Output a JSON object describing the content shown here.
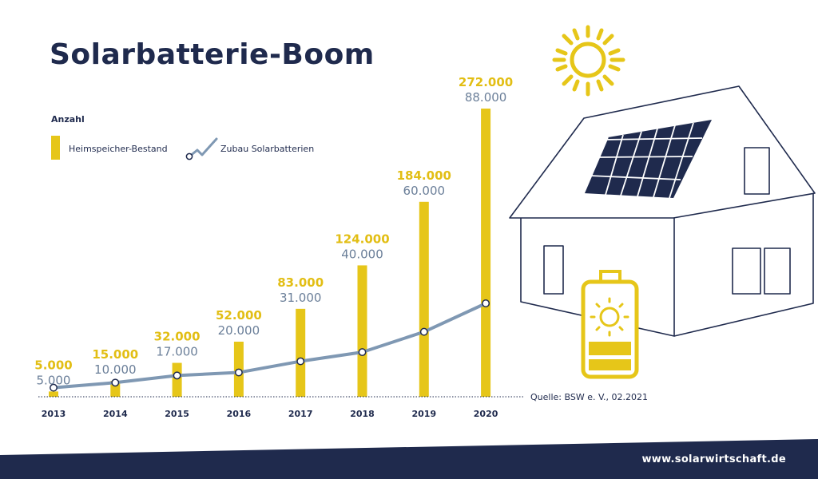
{
  "title": "Solarbatterie-Boom",
  "legend": {
    "heading": "Anzahl",
    "bar_label": "Heimspeicher-Bestand",
    "line_label": "Zubau Solarbatterien"
  },
  "source": "Quelle: BSW e. V., 02.2021",
  "footer_url": "www.solarwirtschaft.de",
  "colors": {
    "bar": "#e6c619",
    "line": "#7f98b3",
    "navy": "#1f2a4d",
    "bar_label": "#e2be14",
    "line_label": "#6b7f99"
  },
  "chart_data": {
    "type": "bar",
    "categories": [
      "2013",
      "2014",
      "2015",
      "2016",
      "2017",
      "2018",
      "2019",
      "2020"
    ],
    "series": [
      {
        "name": "Heimspeicher-Bestand",
        "type": "bar",
        "values": [
          5000,
          15000,
          32000,
          52000,
          83000,
          124000,
          184000,
          272000
        ],
        "labels": [
          "5.000",
          "15.000",
          "32.000",
          "52.000",
          "83.000",
          "124.000",
          "184.000",
          "272.000"
        ]
      },
      {
        "name": "Zubau Solarbatterien",
        "type": "line",
        "values": [
          5000,
          10000,
          17000,
          20000,
          31000,
          40000,
          60000,
          88000
        ],
        "labels": [
          "5.000",
          "10.000",
          "17.000",
          "20.000",
          "31.000",
          "40.000",
          "60.000",
          "88.000"
        ]
      }
    ],
    "xlabel": "",
    "ylabel": "",
    "grid": false,
    "legend_position": "top-left"
  }
}
